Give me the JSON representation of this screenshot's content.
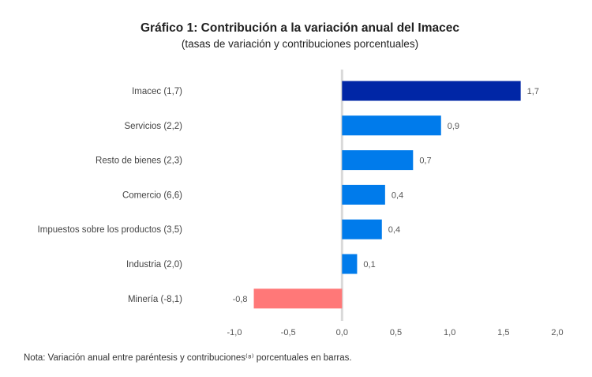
{
  "chart_data": {
    "type": "bar",
    "orientation": "horizontal",
    "title": "Gráfico 1: Contribución a la variación anual del Imacec",
    "subtitle": "(tasas de variación y contribuciones porcentuales)",
    "categories": [
      "Imacec (1,7)",
      "Servicios (2,2)",
      "Resto de bienes (2,3)",
      "Comercio (6,6)",
      "Impuestos sobre los productos (3,5)",
      "Industria (2,0)",
      "Minería (-8,1)"
    ],
    "values": [
      1.66,
      0.92,
      0.66,
      0.4,
      0.37,
      0.14,
      -0.82
    ],
    "data_labels": [
      "1,7",
      "0,9",
      "0,7",
      "0,4",
      "0,4",
      "0,1",
      "-0,8"
    ],
    "colors": [
      "#0026A6",
      "#007BEB",
      "#007BEB",
      "#007BEB",
      "#007BEB",
      "#007BEB",
      "#FF7878"
    ],
    "xlim": [
      -1.0,
      2.0
    ],
    "x_ticks": [
      "-1,0",
      "-0,5",
      "0,0",
      "0,5",
      "1,0",
      "1,5",
      "2,0"
    ],
    "grid": false,
    "xlabel": "",
    "ylabel": ""
  },
  "note": "Nota: Variación anual entre paréntesis y contribuciones⁽⁸⁾ porcentuales en barras."
}
